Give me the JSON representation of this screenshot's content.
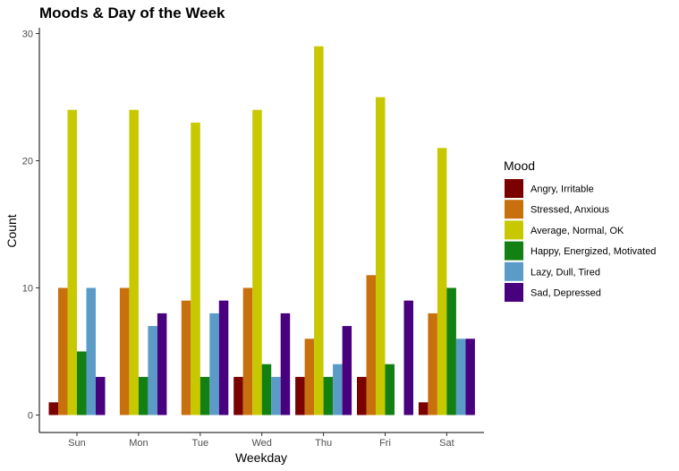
{
  "chart_data": {
    "type": "bar",
    "title": "Moods & Day of the Week",
    "xlabel": "Weekday",
    "ylabel": "Count",
    "categories": [
      "Sun",
      "Mon",
      "Tue",
      "Wed",
      "Thu",
      "Fri",
      "Sat"
    ],
    "ylim": [
      0,
      30
    ],
    "yticks": [
      0,
      10,
      20,
      30
    ],
    "grid": false,
    "legend": {
      "title": "Mood",
      "placement": "right"
    },
    "series": [
      {
        "name": "Angry, Irritable",
        "color": "#7b0000",
        "values": [
          1,
          0,
          0,
          3,
          3,
          3,
          1
        ]
      },
      {
        "name": "Stressed, Anxious",
        "color": "#c8700e",
        "values": [
          10,
          10,
          9,
          10,
          6,
          11,
          8
        ]
      },
      {
        "name": "Average, Normal, OK",
        "color": "#c8c800",
        "values": [
          24,
          24,
          23,
          24,
          29,
          25,
          21
        ]
      },
      {
        "name": "Happy, Energized, Motivated",
        "color": "#128012",
        "values": [
          5,
          3,
          3,
          4,
          3,
          4,
          10
        ]
      },
      {
        "name": "Lazy, Dull, Tired",
        "color": "#5b9bc8",
        "values": [
          10,
          7,
          8,
          3,
          4,
          0,
          6
        ]
      },
      {
        "name": "Sad, Depressed",
        "color": "#48007f",
        "values": [
          3,
          8,
          9,
          8,
          7,
          9,
          6
        ]
      }
    ]
  }
}
